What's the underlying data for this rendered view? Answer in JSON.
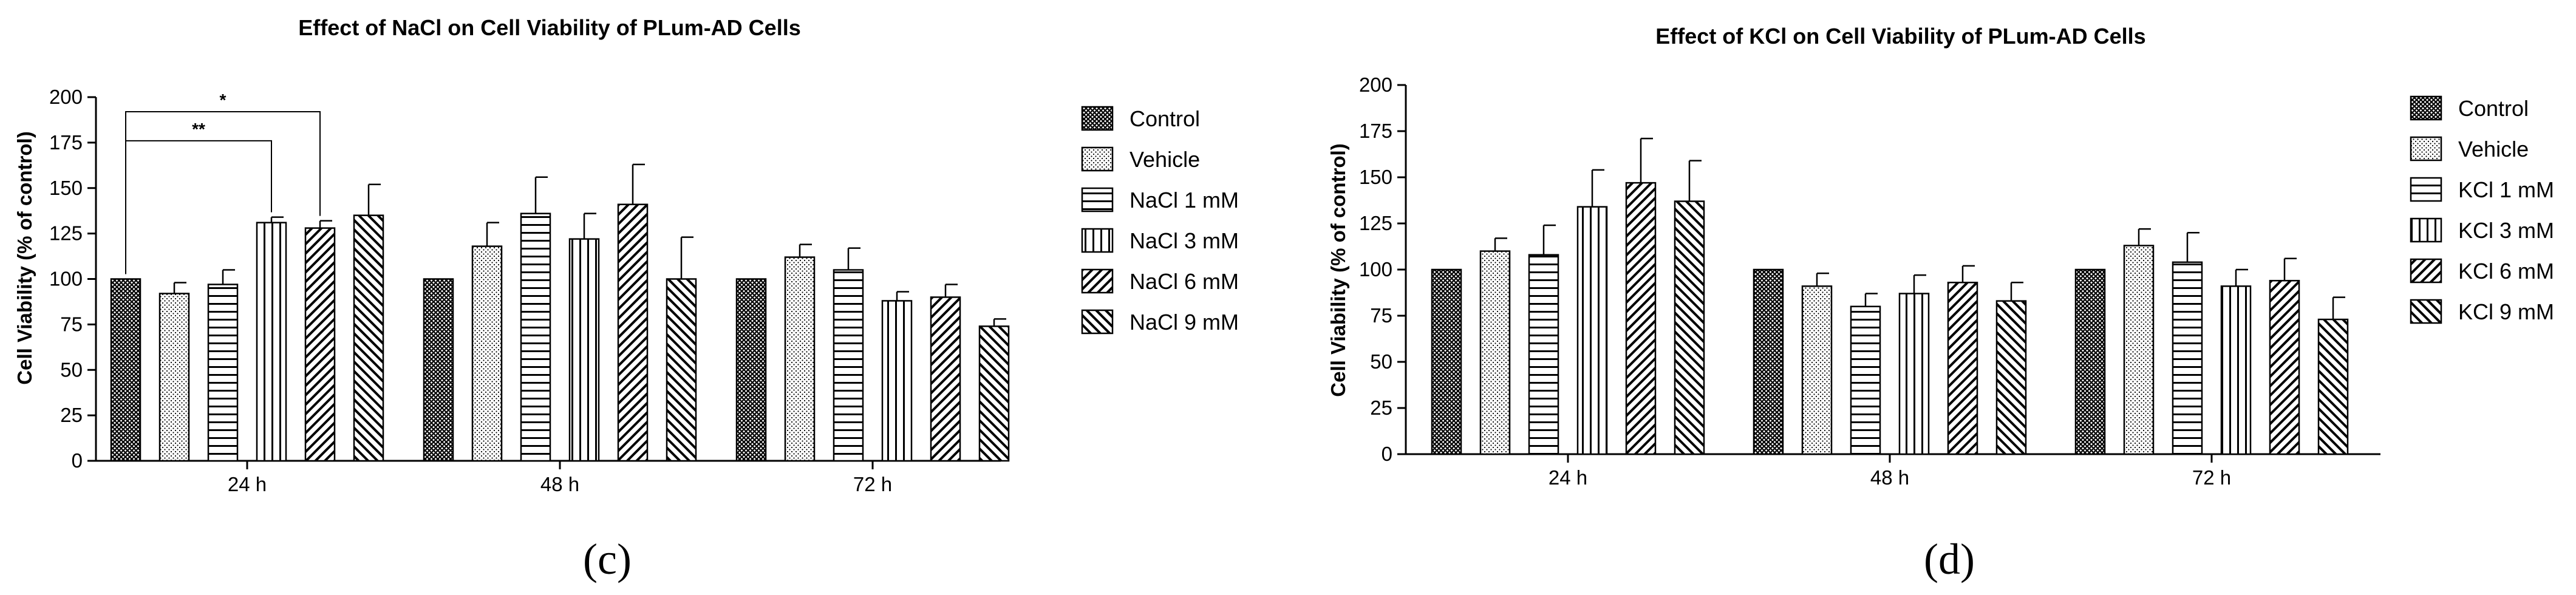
{
  "chart_data": [
    {
      "type": "bar",
      "title": "Effect of NaCl on Cell Viability of PLum-AD Cells",
      "ylabel": "Cell Viability (% of control)",
      "xlabel": "",
      "ylim": [
        0,
        200
      ],
      "yticks": [
        "0",
        "25",
        "50",
        "75",
        "100",
        "125",
        "150",
        "175",
        "200"
      ],
      "categories": [
        "24 h",
        "48 h",
        "72 h"
      ],
      "legend_position": "right",
      "panel_label": "(c)",
      "series": [
        {
          "name": "Control",
          "pattern": "crosshatch",
          "values": [
            100,
            100,
            100
          ],
          "errors": [
            0,
            0,
            0
          ]
        },
        {
          "name": "Vehicle",
          "pattern": "dots",
          "values": [
            92,
            118,
            112
          ],
          "errors": [
            6,
            13,
            7
          ]
        },
        {
          "name": "NaCl 1 mM",
          "pattern": "horizontal",
          "values": [
            97,
            136,
            105
          ],
          "errors": [
            8,
            20,
            12
          ]
        },
        {
          "name": "NaCl 3 mM",
          "pattern": "vertical",
          "values": [
            131,
            122,
            88
          ],
          "errors": [
            3,
            14,
            5
          ]
        },
        {
          "name": "NaCl 6 mM",
          "pattern": "diagonal-up",
          "values": [
            128,
            141,
            90
          ],
          "errors": [
            4,
            22,
            7
          ]
        },
        {
          "name": "NaCl 9 mM",
          "pattern": "diagonal-down",
          "values": [
            135,
            100,
            74
          ],
          "errors": [
            17,
            23,
            4
          ]
        }
      ],
      "significance": [
        {
          "label": "*",
          "category": "24 h",
          "from_series": "Control",
          "to_series": "NaCl 6 mM"
        },
        {
          "label": "**",
          "category": "24 h",
          "from_series": "Control",
          "to_series": "NaCl 3 mM"
        }
      ]
    },
    {
      "type": "bar",
      "title": "Effect of KCl on Cell Viability of PLum-AD Cells",
      "ylabel": "Cell Viability (% of control)",
      "xlabel": "",
      "ylim": [
        0,
        200
      ],
      "yticks": [
        "0",
        "25",
        "50",
        "75",
        "100",
        "125",
        "150",
        "175",
        "200"
      ],
      "categories": [
        "24 h",
        "48 h",
        "72 h"
      ],
      "legend_position": "right",
      "panel_label": "(d)",
      "series": [
        {
          "name": "Control",
          "pattern": "crosshatch",
          "values": [
            100,
            100,
            100
          ],
          "errors": [
            0,
            0,
            0
          ]
        },
        {
          "name": "Vehicle",
          "pattern": "dots",
          "values": [
            110,
            91,
            113
          ],
          "errors": [
            7,
            7,
            9
          ]
        },
        {
          "name": "KCl 1 mM",
          "pattern": "horizontal",
          "values": [
            108,
            80,
            104
          ],
          "errors": [
            16,
            7,
            16
          ]
        },
        {
          "name": "KCl 3 mM",
          "pattern": "vertical",
          "values": [
            134,
            87,
            91
          ],
          "errors": [
            20,
            10,
            9
          ]
        },
        {
          "name": "KCl 6 mM",
          "pattern": "diagonal-up",
          "values": [
            147,
            93,
            94
          ],
          "errors": [
            24,
            9,
            12
          ]
        },
        {
          "name": "KCl 9 mM",
          "pattern": "diagonal-down",
          "values": [
            137,
            83,
            73
          ],
          "errors": [
            22,
            10,
            12
          ]
        }
      ],
      "significance": []
    }
  ]
}
